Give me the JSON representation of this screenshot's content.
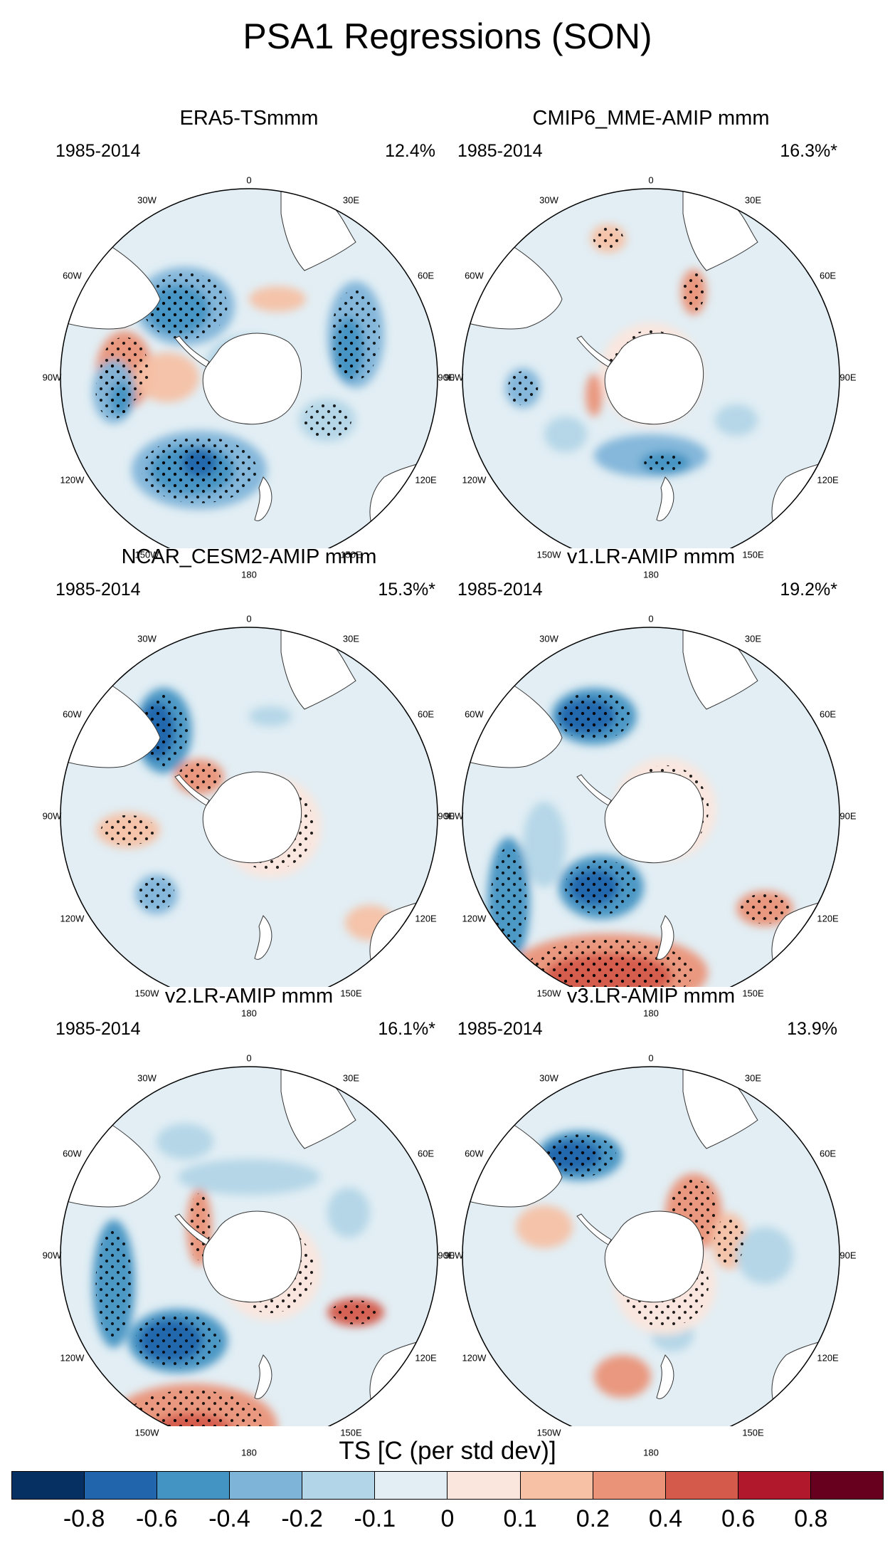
{
  "title": "PSA1 Regressions (SON)",
  "colorbar": {
    "title": "TS [C (per std dev)]",
    "colors": [
      "#053061",
      "#2166ac",
      "#4393c3",
      "#7fb4d9",
      "#b2d5e7",
      "#e2eef4",
      "#fbe6dd",
      "#f6c1a5",
      "#ea9378",
      "#d45b4b",
      "#b2182b",
      "#67001f"
    ],
    "ticks": [
      "-0.8",
      "-0.6",
      "-0.4",
      "-0.2",
      "-0.1",
      "0",
      "0.1",
      "0.2",
      "0.4",
      "0.6",
      "0.8"
    ]
  },
  "lon_labels": [
    "0",
    "30E",
    "60E",
    "90E",
    "120E",
    "150E",
    "180",
    "150W",
    "120W",
    "90W",
    "60W",
    "30W"
  ],
  "panels": [
    {
      "title": "ERA5-TSmmm",
      "period": "1985-2014",
      "pct": "12.4%"
    },
    {
      "title": "CMIP6_MME-AMIP  mmm",
      "period": "1985-2014",
      "pct": "16.3%*"
    },
    {
      "title": "NCAR_CESM2-AMIP  mmm",
      "period": "1985-2014",
      "pct": "15.3%*"
    },
    {
      "title": "v1.LR-AMIP  mmm",
      "period": "1985-2014",
      "pct": "19.2%*"
    },
    {
      "title": "v2.LR-AMIP  mmm",
      "period": "1985-2014",
      "pct": "16.1%*"
    },
    {
      "title": "v3.LR-AMIP  mmm",
      "period": "1985-2014",
      "pct": "13.9%"
    }
  ]
}
